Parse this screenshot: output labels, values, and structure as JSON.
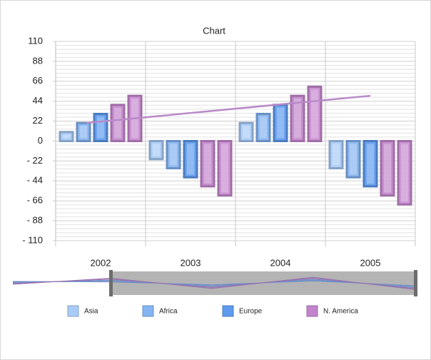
{
  "chart_data": {
    "type": "bar",
    "title": "Chart",
    "categories": [
      "2002",
      "2003",
      "2004",
      "2005"
    ],
    "series": [
      {
        "name": "Asia",
        "color": "#a8cbf7",
        "values": [
          10,
          -20,
          20,
          -30
        ]
      },
      {
        "name": "Africa",
        "color": "#84b4f2",
        "values": [
          20,
          -30,
          30,
          -40
        ]
      },
      {
        "name": "Europe",
        "color": "#5e9bef",
        "values": [
          30,
          -40,
          40,
          -50
        ]
      },
      {
        "name": "N. America",
        "color": "#c184cc",
        "values": [
          40,
          -50,
          50,
          -60
        ]
      },
      {
        "color": "#c88ad0",
        "values": [
          50,
          -60,
          60,
          -70
        ]
      }
    ],
    "trend": [
      20,
      50
    ],
    "ylim": [
      -110,
      110
    ],
    "yticks": [
      {
        "value": -110,
        "label": "- 110"
      },
      {
        "value": -88,
        "label": "- 88"
      },
      {
        "value": -66,
        "label": "- 66"
      },
      {
        "value": -44,
        "label": "- 44"
      },
      {
        "value": -22,
        "label": "- 22"
      },
      0,
      22,
      44,
      66,
      88,
      110
    ],
    "grid": true
  }
}
